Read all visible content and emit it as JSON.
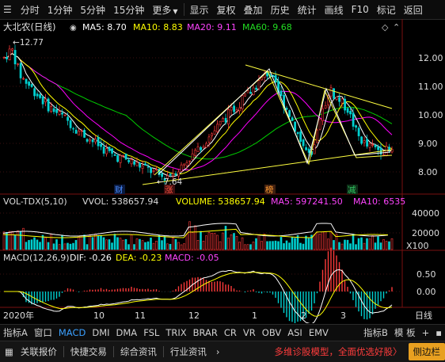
{
  "toolbar": {
    "menu_icon": "menu-icon",
    "periods": [
      "分时",
      "1分钟",
      "5分钟",
      "15分钟",
      "更多"
    ],
    "actions": [
      "显示",
      "复权",
      "叠加",
      "历史",
      "统计",
      "画线",
      "F10",
      "标记",
      "返回"
    ]
  },
  "price_panel": {
    "stock_name": "大北农(日线)",
    "ma5": "MA5: 8.70",
    "ma10": "MA10: 8.83",
    "ma20": "MA20: 9.11",
    "ma60": "MA60: 9.68",
    "high_marker": "12.77",
    "low_marker": "7.64",
    "y_ticks": [
      "12.00",
      "11.00",
      "10.00",
      "9.00",
      "8.00"
    ],
    "events": [
      {
        "text": "财",
        "color": "#4a8cff"
      },
      {
        "text": "涨",
        "color": "#ff5040"
      },
      {
        "text": "榜",
        "color": "#ff9a30"
      },
      {
        "text": "减",
        "color": "#30c060"
      }
    ]
  },
  "volume_panel": {
    "title": "VOL-TDX(5,10)",
    "vvol": "VVOL: 538657.94",
    "volume": "VOLUME: 538657.94",
    "ma5": "MA5: 597241.50",
    "ma10": "MA10: 6535",
    "y_ticks": [
      "40000",
      "20000"
    ],
    "unit": "X100"
  },
  "macd_panel": {
    "title": "MACD(12,26,9)",
    "dif": "DIF: -0.26",
    "dea": "DEA: -0.23",
    "macd": "MACD: -0.05",
    "y_ticks": [
      "0.50",
      "0.00"
    ]
  },
  "x_axis": {
    "labels": [
      "2020年",
      "10",
      "11",
      "12",
      "1",
      "2",
      "3"
    ],
    "right_button": "日线"
  },
  "indicator_tabs": [
    "指标A",
    "窗口",
    "MACD",
    "DMI",
    "DMA",
    "FSL",
    "TRIX",
    "BRAR",
    "CR",
    "VR",
    "OBV",
    "ASI",
    "EMV"
  ],
  "indicator_right": [
    "指标B",
    "模",
    "板"
  ],
  "bottom": {
    "buttons": [
      "关联报价",
      "快捷交易",
      "综合资讯",
      "行业资讯"
    ],
    "arrow": "›",
    "ad": "多维诊股模型，全面优选好股〉",
    "side": "侧边栏"
  },
  "colors": {
    "up": "#ff3a3a",
    "down": "#00d0d0",
    "ma5": "#ffffff",
    "ma10": "#ffff00",
    "ma20": "#ff00ff",
    "ma60": "#00cc00"
  }
}
